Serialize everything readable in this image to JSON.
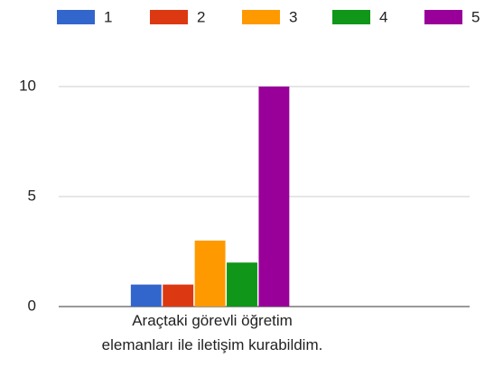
{
  "chart_data": {
    "type": "bar",
    "categories": [
      "Araçtaki görevli öğretim elemanları ile iletişim kurabildim."
    ],
    "series": [
      {
        "name": "1",
        "color": "#3366cc",
        "values": [
          1
        ]
      },
      {
        "name": "2",
        "color": "#dc3912",
        "values": [
          1
        ]
      },
      {
        "name": "3",
        "color": "#ff9900",
        "values": [
          3
        ]
      },
      {
        "name": "4",
        "color": "#109618",
        "values": [
          2
        ]
      },
      {
        "name": "5",
        "color": "#990099",
        "values": [
          10
        ]
      }
    ],
    "ylim": [
      0,
      10
    ],
    "yticks": [
      0,
      5,
      10
    ],
    "grid": true,
    "legend": "top"
  }
}
